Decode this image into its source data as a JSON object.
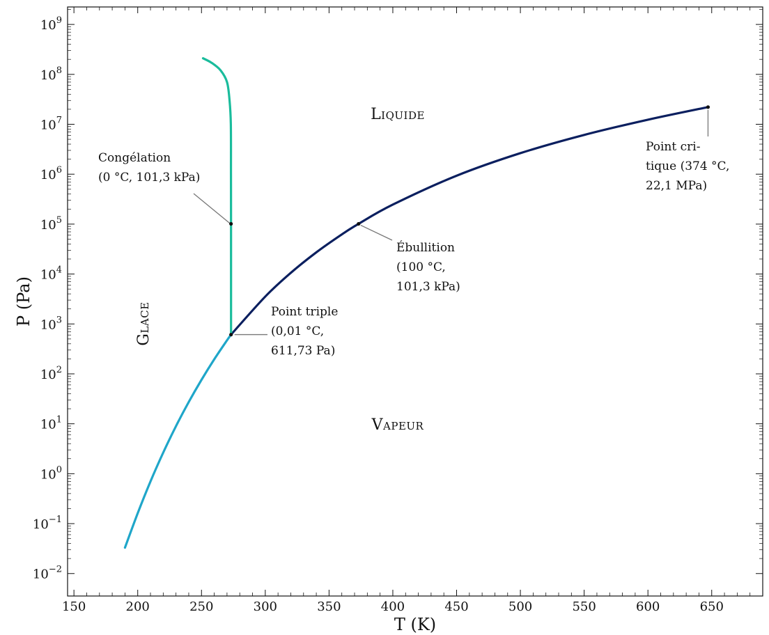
{
  "chart_data": {
    "type": "line",
    "xlabel": "T (K)",
    "ylabel": "P (Pa)",
    "xlim": [
      145,
      690
    ],
    "ylim_log10": [
      -2.45,
      9.35
    ],
    "yscale": "log",
    "x_ticks": [
      150,
      200,
      250,
      300,
      350,
      400,
      450,
      500,
      550,
      600,
      650
    ],
    "y_tick_exponents": [
      -2,
      -1,
      0,
      1,
      2,
      3,
      4,
      5,
      6,
      7,
      8,
      9
    ],
    "y_tick_base": "10",
    "grid": false,
    "series": [
      {
        "color": "#1fa6c9",
        "points": [
          [
            190,
            0.033
          ],
          [
            200,
            0.162
          ],
          [
            210,
            0.7
          ],
          [
            220,
            2.65
          ],
          [
            230,
            8.97
          ],
          [
            240,
            27.3
          ],
          [
            250,
            76.0
          ],
          [
            260,
            196
          ],
          [
            270,
            470
          ],
          [
            273.16,
            611.73
          ]
        ]
      },
      {
        "color": "#0b1f5f",
        "points": [
          [
            273.16,
            611.73
          ],
          [
            300,
            3537
          ],
          [
            320,
            10560
          ],
          [
            340,
            27190
          ],
          [
            360,
            62200
          ],
          [
            373.15,
            101325
          ],
          [
            400,
            245800
          ],
          [
            450,
            932000
          ],
          [
            500,
            2639000
          ],
          [
            550,
            6118000
          ],
          [
            600,
            12350000
          ],
          [
            647.1,
            22100000
          ]
        ]
      },
      {
        "color": "#1abc9c",
        "points": [
          [
            273.16,
            611.73
          ],
          [
            273.15,
            101325
          ],
          [
            273.1,
            1000000
          ],
          [
            273.0,
            10000000
          ],
          [
            272.0,
            30000000
          ],
          [
            270,
            70000000
          ],
          [
            265,
            120000000
          ],
          [
            258,
            170000000
          ],
          [
            251.2,
            209900000
          ]
        ]
      }
    ],
    "points": [
      {
        "x": 273.16,
        "y": 611.73
      },
      {
        "x": 273.15,
        "y": 101325
      },
      {
        "x": 373.15,
        "y": 101325
      },
      {
        "x": 647.1,
        "y": 22100000
      }
    ],
    "region_labels": {
      "liquid": "Liquide",
      "ice": "Glace",
      "vapor": "Vapeur"
    },
    "annotations": {
      "freezing": [
        "Congélation",
        "(0 °C, 101,3 kPa)"
      ],
      "boiling": [
        "Ébullition",
        "(100 °C,",
        "101,3 kPa)"
      ],
      "triple": [
        "Point triple",
        "(0,01 °C,",
        "611,73 Pa)"
      ],
      "critical": [
        "Point cri-",
        "tique (374 °C,",
        "22,1 MPa)"
      ]
    }
  }
}
